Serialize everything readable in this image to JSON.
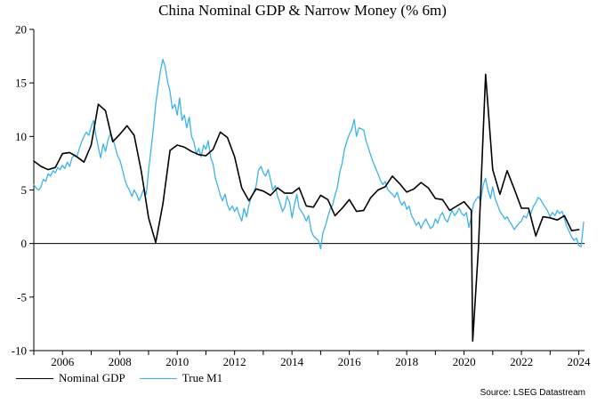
{
  "chart_data": {
    "type": "line",
    "title": "China Nominal GDP & Narrow Money (% 6m)",
    "source": "Source: LSEG Datastream",
    "xlim": [
      2005.0,
      2024.2
    ],
    "ylim": [
      -10,
      20
    ],
    "yticks": [
      -10,
      -5,
      0,
      5,
      10,
      15,
      20
    ],
    "xticks": [
      2006,
      2008,
      2010,
      2012,
      2014,
      2016,
      2018,
      2020,
      2022,
      2024
    ],
    "grid": false,
    "legend_position": "bottom-left",
    "colors": {
      "nominal_gdp": "#000000",
      "true_m1": "#3BB3E8"
    },
    "series": [
      {
        "name": "Nominal GDP",
        "color": "#000000",
        "points": [
          [
            2005.0,
            7.7
          ],
          [
            2005.25,
            7.2
          ],
          [
            2005.5,
            6.9
          ],
          [
            2005.75,
            7.1
          ],
          [
            2006.0,
            8.4
          ],
          [
            2006.25,
            8.5
          ],
          [
            2006.5,
            8.1
          ],
          [
            2006.75,
            7.6
          ],
          [
            2007.0,
            9.2
          ],
          [
            2007.25,
            13.0
          ],
          [
            2007.5,
            12.4
          ],
          [
            2007.75,
            9.5
          ],
          [
            2008.0,
            10.2
          ],
          [
            2008.25,
            11.0
          ],
          [
            2008.5,
            10.1
          ],
          [
            2008.75,
            6.7
          ],
          [
            2009.0,
            2.4
          ],
          [
            2009.25,
            0.1
          ],
          [
            2009.5,
            3.7
          ],
          [
            2009.75,
            8.7
          ],
          [
            2010.0,
            9.2
          ],
          [
            2010.25,
            9.0
          ],
          [
            2010.5,
            8.6
          ],
          [
            2010.75,
            8.3
          ],
          [
            2011.0,
            8.2
          ],
          [
            2011.25,
            8.8
          ],
          [
            2011.5,
            10.4
          ],
          [
            2011.75,
            9.9
          ],
          [
            2012.0,
            8.1
          ],
          [
            2012.25,
            5.2
          ],
          [
            2012.5,
            4.0
          ],
          [
            2012.75,
            5.1
          ],
          [
            2013.0,
            4.9
          ],
          [
            2013.25,
            4.5
          ],
          [
            2013.5,
            5.2
          ],
          [
            2013.75,
            4.7
          ],
          [
            2014.0,
            4.7
          ],
          [
            2014.25,
            5.2
          ],
          [
            2014.5,
            3.5
          ],
          [
            2014.75,
            3.4
          ],
          [
            2015.0,
            4.5
          ],
          [
            2015.25,
            4.1
          ],
          [
            2015.5,
            2.6
          ],
          [
            2015.75,
            3.3
          ],
          [
            2016.0,
            4.1
          ],
          [
            2016.25,
            3.0
          ],
          [
            2016.5,
            3.1
          ],
          [
            2016.75,
            4.3
          ],
          [
            2017.0,
            5.0
          ],
          [
            2017.25,
            5.3
          ],
          [
            2017.5,
            6.3
          ],
          [
            2017.75,
            5.6
          ],
          [
            2018.0,
            4.8
          ],
          [
            2018.25,
            5.1
          ],
          [
            2018.5,
            5.7
          ],
          [
            2018.75,
            5.2
          ],
          [
            2019.0,
            4.2
          ],
          [
            2019.25,
            4.1
          ],
          [
            2019.5,
            3.1
          ],
          [
            2019.75,
            3.5
          ],
          [
            2020.0,
            3.9
          ],
          [
            2020.25,
            3.1
          ],
          [
            2020.3,
            -9.1
          ],
          [
            2020.5,
            -0.5
          ],
          [
            2020.75,
            15.8
          ],
          [
            2021.0,
            6.9
          ],
          [
            2021.25,
            4.6
          ],
          [
            2021.5,
            6.8
          ],
          [
            2021.75,
            5.1
          ],
          [
            2022.0,
            3.3
          ],
          [
            2022.25,
            3.3
          ],
          [
            2022.5,
            0.7
          ],
          [
            2022.75,
            2.5
          ],
          [
            2023.0,
            2.4
          ],
          [
            2023.25,
            2.2
          ],
          [
            2023.5,
            2.6
          ],
          [
            2023.75,
            1.2
          ],
          [
            2024.0,
            1.3
          ]
        ]
      },
      {
        "name": "True M1",
        "color": "#3BB3E8",
        "points": [
          [
            2005.0,
            5.5
          ],
          [
            2005.08,
            5.2
          ],
          [
            2005.17,
            5.0
          ],
          [
            2005.25,
            5.3
          ],
          [
            2005.33,
            6.0
          ],
          [
            2005.42,
            5.8
          ],
          [
            2005.5,
            6.5
          ],
          [
            2005.58,
            6.3
          ],
          [
            2005.67,
            6.8
          ],
          [
            2005.75,
            6.6
          ],
          [
            2005.83,
            7.1
          ],
          [
            2005.92,
            6.9
          ],
          [
            2006.0,
            7.3
          ],
          [
            2006.08,
            7.0
          ],
          [
            2006.17,
            7.6
          ],
          [
            2006.25,
            7.2
          ],
          [
            2006.33,
            8.0
          ],
          [
            2006.42,
            8.3
          ],
          [
            2006.5,
            8.1
          ],
          [
            2006.58,
            8.8
          ],
          [
            2006.67,
            9.5
          ],
          [
            2006.75,
            10.0
          ],
          [
            2006.83,
            10.4
          ],
          [
            2006.92,
            10.1
          ],
          [
            2007.0,
            10.9
          ],
          [
            2007.08,
            11.5
          ],
          [
            2007.17,
            10.0
          ],
          [
            2007.25,
            9.0
          ],
          [
            2007.33,
            8.0
          ],
          [
            2007.42,
            9.3
          ],
          [
            2007.5,
            8.6
          ],
          [
            2007.58,
            9.6
          ],
          [
            2007.67,
            10.3
          ],
          [
            2007.75,
            9.8
          ],
          [
            2007.83,
            9.1
          ],
          [
            2007.92,
            8.2
          ],
          [
            2008.0,
            7.8
          ],
          [
            2008.08,
            7.0
          ],
          [
            2008.17,
            6.0
          ],
          [
            2008.25,
            5.4
          ],
          [
            2008.33,
            5.0
          ],
          [
            2008.42,
            4.4
          ],
          [
            2008.5,
            5.0
          ],
          [
            2008.58,
            4.6
          ],
          [
            2008.67,
            4.0
          ],
          [
            2008.75,
            4.5
          ],
          [
            2008.83,
            5.1
          ],
          [
            2008.92,
            4.6
          ],
          [
            2009.0,
            6.8
          ],
          [
            2009.08,
            8.6
          ],
          [
            2009.17,
            10.8
          ],
          [
            2009.25,
            13.0
          ],
          [
            2009.33,
            14.6
          ],
          [
            2009.42,
            16.2
          ],
          [
            2009.5,
            17.2
          ],
          [
            2009.58,
            16.5
          ],
          [
            2009.67,
            15.0
          ],
          [
            2009.75,
            14.2
          ],
          [
            2009.83,
            12.6
          ],
          [
            2009.92,
            13.0
          ],
          [
            2010.0,
            12.0
          ],
          [
            2010.08,
            13.6
          ],
          [
            2010.17,
            11.5
          ],
          [
            2010.25,
            12.0
          ],
          [
            2010.33,
            10.8
          ],
          [
            2010.42,
            11.8
          ],
          [
            2010.5,
            10.0
          ],
          [
            2010.58,
            9.5
          ],
          [
            2010.67,
            8.3
          ],
          [
            2010.75,
            8.9
          ],
          [
            2010.83,
            8.1
          ],
          [
            2010.92,
            9.2
          ],
          [
            2011.0,
            8.8
          ],
          [
            2011.08,
            9.6
          ],
          [
            2011.17,
            8.0
          ],
          [
            2011.25,
            7.4
          ],
          [
            2011.33,
            6.1
          ],
          [
            2011.42,
            5.3
          ],
          [
            2011.5,
            4.5
          ],
          [
            2011.58,
            4.0
          ],
          [
            2011.67,
            4.6
          ],
          [
            2011.75,
            3.6
          ],
          [
            2011.83,
            3.1
          ],
          [
            2011.92,
            3.5
          ],
          [
            2012.0,
            3.0
          ],
          [
            2012.08,
            3.4
          ],
          [
            2012.17,
            2.6
          ],
          [
            2012.25,
            2.1
          ],
          [
            2012.33,
            3.3
          ],
          [
            2012.42,
            2.5
          ],
          [
            2012.5,
            3.6
          ],
          [
            2012.58,
            4.3
          ],
          [
            2012.67,
            4.8
          ],
          [
            2012.75,
            5.4
          ],
          [
            2012.83,
            6.8
          ],
          [
            2012.92,
            7.2
          ],
          [
            2013.0,
            6.6
          ],
          [
            2013.08,
            6.3
          ],
          [
            2013.17,
            6.9
          ],
          [
            2013.25,
            6.0
          ],
          [
            2013.33,
            5.0
          ],
          [
            2013.42,
            5.4
          ],
          [
            2013.5,
            4.4
          ],
          [
            2013.58,
            3.8
          ],
          [
            2013.67,
            3.0
          ],
          [
            2013.75,
            3.4
          ],
          [
            2013.83,
            4.4
          ],
          [
            2013.92,
            3.8
          ],
          [
            2014.0,
            2.4
          ],
          [
            2014.08,
            3.5
          ],
          [
            2014.17,
            4.6
          ],
          [
            2014.25,
            3.3
          ],
          [
            2014.33,
            3.0
          ],
          [
            2014.42,
            2.6
          ],
          [
            2014.5,
            2.1
          ],
          [
            2014.58,
            2.6
          ],
          [
            2014.67,
            1.2
          ],
          [
            2014.75,
            0.7
          ],
          [
            2014.83,
            0.5
          ],
          [
            2014.92,
            0.3
          ],
          [
            2015.0,
            -0.5
          ],
          [
            2015.08,
            1.0
          ],
          [
            2015.17,
            1.7
          ],
          [
            2015.25,
            2.5
          ],
          [
            2015.33,
            3.2
          ],
          [
            2015.42,
            3.6
          ],
          [
            2015.5,
            4.5
          ],
          [
            2015.58,
            5.2
          ],
          [
            2015.67,
            6.7
          ],
          [
            2015.75,
            7.5
          ],
          [
            2015.83,
            8.8
          ],
          [
            2015.92,
            9.6
          ],
          [
            2016.0,
            10.2
          ],
          [
            2016.08,
            10.6
          ],
          [
            2016.17,
            11.6
          ],
          [
            2016.25,
            10.0
          ],
          [
            2016.33,
            10.8
          ],
          [
            2016.42,
            10.7
          ],
          [
            2016.5,
            10.6
          ],
          [
            2016.58,
            9.6
          ],
          [
            2016.67,
            8.9
          ],
          [
            2016.75,
            8.2
          ],
          [
            2016.83,
            7.6
          ],
          [
            2016.92,
            7.0
          ],
          [
            2017.0,
            6.5
          ],
          [
            2017.08,
            5.9
          ],
          [
            2017.17,
            5.5
          ],
          [
            2017.25,
            5.8
          ],
          [
            2017.33,
            5.1
          ],
          [
            2017.42,
            4.8
          ],
          [
            2017.5,
            4.6
          ],
          [
            2017.58,
            4.3
          ],
          [
            2017.67,
            4.8
          ],
          [
            2017.75,
            4.0
          ],
          [
            2017.83,
            3.6
          ],
          [
            2017.92,
            3.9
          ],
          [
            2018.0,
            3.2
          ],
          [
            2018.08,
            3.5
          ],
          [
            2018.17,
            2.6
          ],
          [
            2018.25,
            2.2
          ],
          [
            2018.33,
            1.7
          ],
          [
            2018.42,
            2.0
          ],
          [
            2018.5,
            1.4
          ],
          [
            2018.58,
            1.9
          ],
          [
            2018.67,
            2.3
          ],
          [
            2018.75,
            1.8
          ],
          [
            2018.83,
            1.4
          ],
          [
            2018.92,
            1.6
          ],
          [
            2019.0,
            2.3
          ],
          [
            2019.08,
            1.9
          ],
          [
            2019.17,
            2.6
          ],
          [
            2019.25,
            2.9
          ],
          [
            2019.33,
            2.3
          ],
          [
            2019.42,
            2.0
          ],
          [
            2019.5,
            2.6
          ],
          [
            2019.58,
            3.1
          ],
          [
            2019.67,
            2.6
          ],
          [
            2019.75,
            2.9
          ],
          [
            2019.83,
            3.3
          ],
          [
            2019.92,
            2.8
          ],
          [
            2020.0,
            2.6
          ],
          [
            2020.08,
            2.9
          ],
          [
            2020.17,
            1.5
          ],
          [
            2020.25,
            2.5
          ],
          [
            2020.33,
            3.7
          ],
          [
            2020.42,
            4.1
          ],
          [
            2020.5,
            4.4
          ],
          [
            2020.58,
            4.0
          ],
          [
            2020.67,
            5.5
          ],
          [
            2020.75,
            6.1
          ],
          [
            2020.83,
            5.0
          ],
          [
            2020.92,
            4.2
          ],
          [
            2021.0,
            5.3
          ],
          [
            2021.08,
            4.2
          ],
          [
            2021.17,
            3.6
          ],
          [
            2021.25,
            3.0
          ],
          [
            2021.33,
            2.7
          ],
          [
            2021.42,
            2.3
          ],
          [
            2021.5,
            2.5
          ],
          [
            2021.58,
            2.1
          ],
          [
            2021.67,
            1.7
          ],
          [
            2021.75,
            1.3
          ],
          [
            2021.83,
            1.6
          ],
          [
            2021.92,
            1.9
          ],
          [
            2022.0,
            2.1
          ],
          [
            2022.08,
            2.6
          ],
          [
            2022.17,
            2.4
          ],
          [
            2022.25,
            3.0
          ],
          [
            2022.33,
            2.8
          ],
          [
            2022.42,
            3.5
          ],
          [
            2022.5,
            3.8
          ],
          [
            2022.58,
            4.3
          ],
          [
            2022.67,
            4.1
          ],
          [
            2022.75,
            3.7
          ],
          [
            2022.83,
            3.4
          ],
          [
            2022.92,
            3.0
          ],
          [
            2023.0,
            2.5
          ],
          [
            2023.08,
            2.9
          ],
          [
            2023.17,
            2.6
          ],
          [
            2023.25,
            3.1
          ],
          [
            2023.33,
            2.8
          ],
          [
            2023.42,
            3.0
          ],
          [
            2023.5,
            2.3
          ],
          [
            2023.58,
            1.6
          ],
          [
            2023.67,
            1.1
          ],
          [
            2023.75,
            0.6
          ],
          [
            2023.83,
            0.3
          ],
          [
            2023.92,
            0.5
          ],
          [
            2024.0,
            -0.2
          ],
          [
            2024.08,
            -0.3
          ],
          [
            2024.17,
            2.0
          ]
        ]
      }
    ]
  }
}
